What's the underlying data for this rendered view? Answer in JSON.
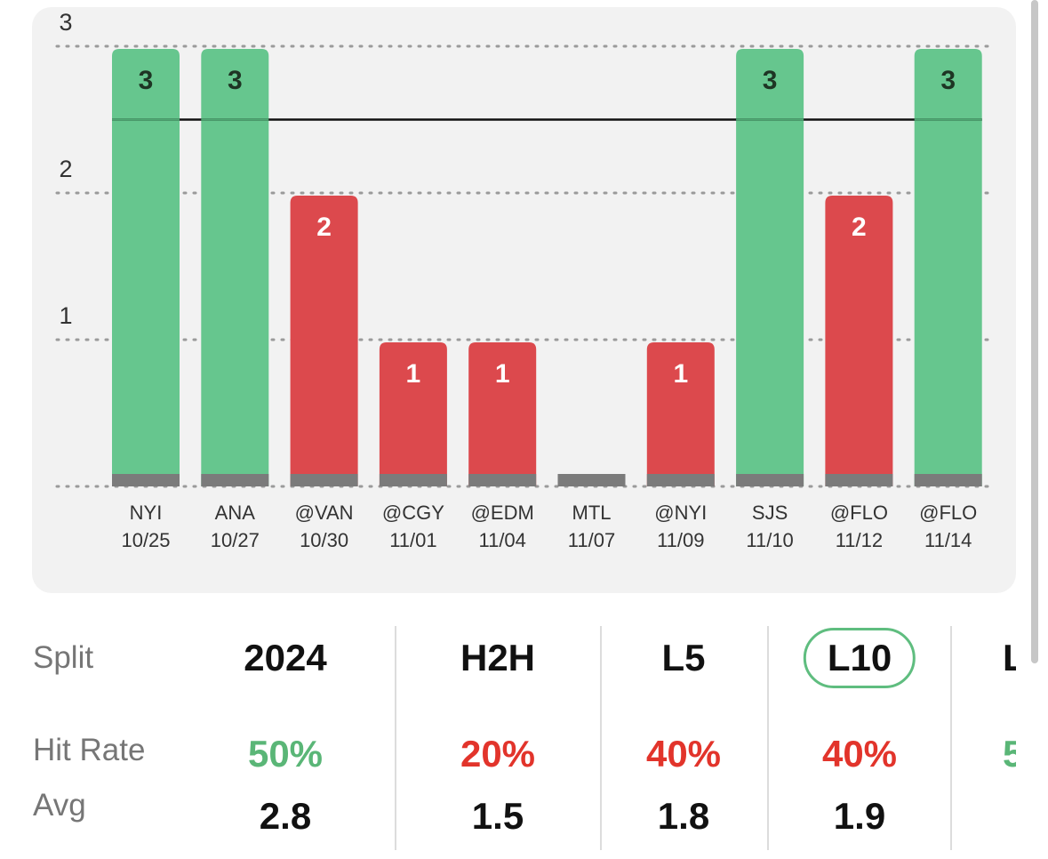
{
  "colors": {
    "hit": "#66c68e",
    "miss": "#dc494d",
    "hit_text": "#5ab677",
    "miss_text": "#e2342b",
    "base": "#7b7b7b",
    "card": "#f2f2f2"
  },
  "chart_data": {
    "type": "bar",
    "ylim": [
      0,
      3
    ],
    "yticks": [
      1,
      2,
      3
    ],
    "line_value": 2.5,
    "categories": [
      {
        "opponent": "NYI",
        "date": "10/25"
      },
      {
        "opponent": "ANA",
        "date": "10/27"
      },
      {
        "opponent": "@VAN",
        "date": "10/30"
      },
      {
        "opponent": "@CGY",
        "date": "11/01"
      },
      {
        "opponent": "@EDM",
        "date": "11/04"
      },
      {
        "opponent": "MTL",
        "date": "11/07"
      },
      {
        "opponent": "@NYI",
        "date": "11/09"
      },
      {
        "opponent": "SJS",
        "date": "11/10"
      },
      {
        "opponent": "@FLO",
        "date": "11/12"
      },
      {
        "opponent": "@FLO",
        "date": "11/14"
      }
    ],
    "values": [
      3,
      3,
      2,
      1,
      1,
      0,
      1,
      3,
      2,
      3
    ],
    "results": [
      "hit",
      "hit",
      "miss",
      "miss",
      "miss",
      "miss",
      "miss",
      "hit",
      "miss",
      "hit"
    ]
  },
  "table": {
    "row_labels": {
      "split": "Split",
      "hit_rate": "Hit Rate",
      "avg": "Avg"
    },
    "columns": [
      {
        "split": "2024",
        "hit_rate": "50%",
        "hit_status": "hit",
        "avg": "2.8",
        "selected": false
      },
      {
        "split": "H2H",
        "hit_rate": "20%",
        "hit_status": "miss",
        "avg": "1.5",
        "selected": false
      },
      {
        "split": "L5",
        "hit_rate": "40%",
        "hit_status": "miss",
        "avg": "1.8",
        "selected": false
      },
      {
        "split": "L10",
        "hit_rate": "40%",
        "hit_status": "miss",
        "avg": "1.9",
        "selected": true
      }
    ],
    "partial_column": {
      "split": "L",
      "hit_rate": "5",
      "hit_status": "hit"
    }
  }
}
